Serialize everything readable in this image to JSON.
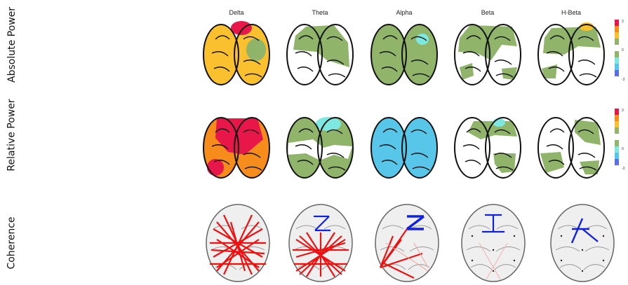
{
  "rows": [
    "Absolute Power",
    "Relative Power",
    "Coherence"
  ],
  "bands": [
    "Delta",
    "Theta",
    "Alpha",
    "Beta",
    "H-Beta"
  ],
  "colorbar": {
    "ticks": [
      "3",
      "0",
      "-3"
    ],
    "colors": [
      "#e8174a",
      "#f58c1c",
      "#fbc02d",
      "#8fb46a",
      "#ffffff",
      "#8fb46a",
      "#7ee8e0",
      "#57c6e8",
      "#5b6fe0"
    ]
  },
  "colors": {
    "white": "#ffffff",
    "green": "#8fb46a",
    "yellow": "#fbc02d",
    "orange": "#f58c1c",
    "red": "#e8174a",
    "cyan": "#7ee8e0",
    "lightblue": "#57c6e8",
    "coh_positive": "#ee1111",
    "coh_negative": "#1122dd"
  }
}
